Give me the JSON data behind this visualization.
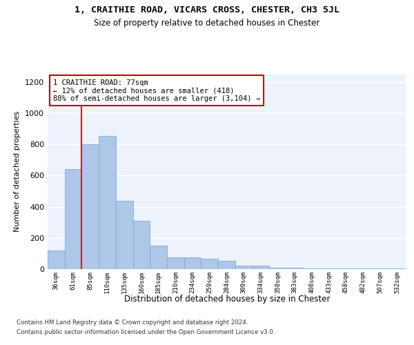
{
  "title1": "1, CRAITHIE ROAD, VICARS CROSS, CHESTER, CH3 5JL",
  "title2": "Size of property relative to detached houses in Chester",
  "xlabel": "Distribution of detached houses by size in Chester",
  "ylabel": "Number of detached properties",
  "categories": [
    "36sqm",
    "61sqm",
    "85sqm",
    "110sqm",
    "135sqm",
    "160sqm",
    "185sqm",
    "210sqm",
    "234sqm",
    "259sqm",
    "284sqm",
    "309sqm",
    "334sqm",
    "358sqm",
    "383sqm",
    "408sqm",
    "433sqm",
    "458sqm",
    "482sqm",
    "507sqm",
    "532sqm"
  ],
  "values": [
    120,
    640,
    800,
    855,
    440,
    310,
    150,
    75,
    75,
    65,
    55,
    20,
    20,
    10,
    10,
    5,
    5,
    5,
    5,
    5,
    5
  ],
  "bar_color": "#aec6e8",
  "bar_edge_color": "#7aafd4",
  "background_color": "#edf2fb",
  "annotation_box_edge": "#cc0000",
  "annotation_text": "1 CRAITHIE ROAD: 77sqm\n← 12% of detached houses are smaller (418)\n88% of semi-detached houses are larger (3,104) →",
  "redline_x": 1.5,
  "footer1": "Contains HM Land Registry data © Crown copyright and database right 2024.",
  "footer2": "Contains public sector information licensed under the Open Government Licence v3.0.",
  "ylim": [
    0,
    1250
  ],
  "yticks": [
    0,
    200,
    400,
    600,
    800,
    1000,
    1200
  ]
}
